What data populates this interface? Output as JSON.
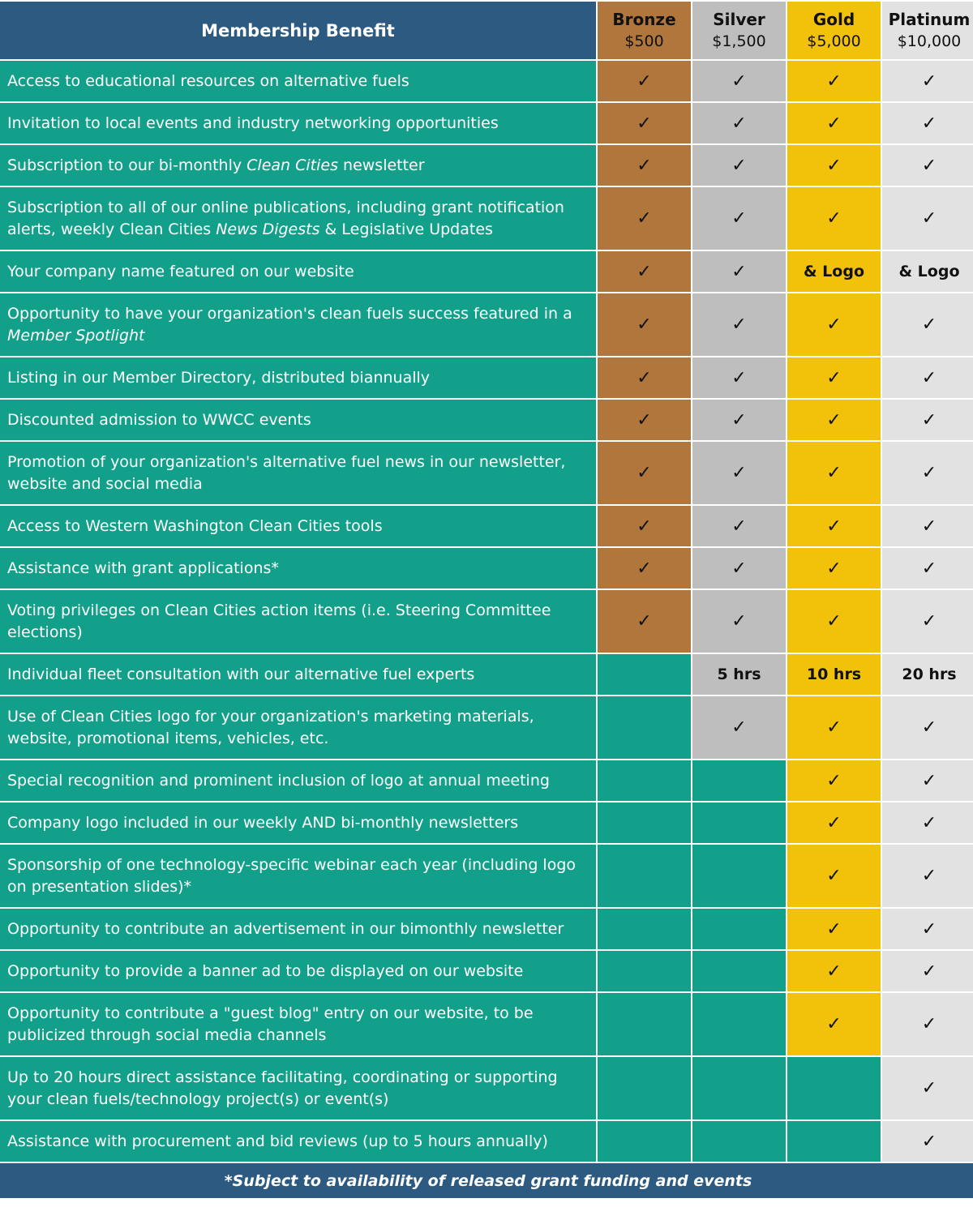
{
  "header": {
    "benefit_label": "Membership Benefit",
    "tiers": [
      {
        "name": "Bronze",
        "price": "$500",
        "color": "#b0763c"
      },
      {
        "name": "Silver",
        "price": "$1,500",
        "color": "#bebebe"
      },
      {
        "name": "Gold",
        "price": "$5,000",
        "color": "#f2c10a"
      },
      {
        "name": "Platinum",
        "price": "$10,000",
        "color": "#e2e2e2"
      }
    ]
  },
  "colors": {
    "header_bg": "#2d5a80",
    "benefit_bg": "#13a08a",
    "check": "#111111"
  },
  "check_symbol": "✓",
  "rows": [
    {
      "parts": [
        {
          "t": "Access to educational resources on alternative fuels"
        }
      ],
      "lines": 1,
      "cells": [
        "check",
        "check",
        "check",
        "check"
      ]
    },
    {
      "parts": [
        {
          "t": "Invitation to local events and industry networking opportunities"
        }
      ],
      "lines": 1,
      "cells": [
        "check",
        "check",
        "check",
        "check"
      ]
    },
    {
      "parts": [
        {
          "t": "Subscription to our bi-monthly "
        },
        {
          "t": "Clean Cities",
          "i": true
        },
        {
          "t": " newsletter"
        }
      ],
      "lines": 1,
      "cells": [
        "check",
        "check",
        "check",
        "check"
      ]
    },
    {
      "parts": [
        {
          "t": "Subscription to all of our online publications, including grant notification alerts, weekly Clean Cities "
        },
        {
          "t": "News Digests",
          "i": true
        },
        {
          "t": " & Legislative Updates"
        }
      ],
      "lines": 2,
      "cells": [
        "check",
        "check",
        "check",
        "check"
      ]
    },
    {
      "parts": [
        {
          "t": "Your company name featured on our website"
        }
      ],
      "lines": 1,
      "cells": [
        "check",
        "check",
        "& Logo",
        "& Logo"
      ]
    },
    {
      "parts": [
        {
          "t": "Opportunity to have your organization's clean fuels success featured in a "
        },
        {
          "t": "Member Spotlight",
          "i": true
        }
      ],
      "lines": 2,
      "cells": [
        "check",
        "check",
        "check",
        "check"
      ]
    },
    {
      "parts": [
        {
          "t": "Listing in our Member Directory, distributed biannually"
        }
      ],
      "lines": 1,
      "cells": [
        "check",
        "check",
        "check",
        "check"
      ]
    },
    {
      "parts": [
        {
          "t": "Discounted admission to WWCC events"
        }
      ],
      "lines": 1,
      "cells": [
        "check",
        "check",
        "check",
        "check"
      ]
    },
    {
      "parts": [
        {
          "t": "Promotion of your organization's alternative fuel news in our newsletter, website and social media"
        }
      ],
      "lines": 2,
      "cells": [
        "check",
        "check",
        "check",
        "check"
      ]
    },
    {
      "parts": [
        {
          "t": "Access to Western Washington Clean Cities tools"
        }
      ],
      "lines": 1,
      "cells": [
        "check",
        "check",
        "check",
        "check"
      ]
    },
    {
      "parts": [
        {
          "t": "Assistance with grant applications*"
        }
      ],
      "lines": 1,
      "cells": [
        "check",
        "check",
        "check",
        "check"
      ]
    },
    {
      "parts": [
        {
          "t": "Voting privileges on Clean Cities action items (i.e. Steering Committee elections)"
        }
      ],
      "lines": 2,
      "cells": [
        "check",
        "check",
        "check",
        "check"
      ]
    },
    {
      "parts": [
        {
          "t": "Individual fleet consultation with our alternative fuel experts"
        }
      ],
      "lines": 1,
      "cells": [
        "",
        "5 hrs",
        "10 hrs",
        "20 hrs"
      ]
    },
    {
      "parts": [
        {
          "t": "Use of Clean Cities logo for your organization's marketing materials, website, promotional items, vehicles, etc."
        }
      ],
      "lines": 2,
      "cells": [
        "",
        "check",
        "check",
        "check"
      ]
    },
    {
      "parts": [
        {
          "t": "Special recognition and prominent inclusion of logo at annual meeting"
        }
      ],
      "lines": 1,
      "cells": [
        "",
        "",
        "check",
        "check"
      ]
    },
    {
      "parts": [
        {
          "t": "Company logo included in our weekly AND bi-monthly newsletters"
        }
      ],
      "lines": 1,
      "cells": [
        "",
        "",
        "check",
        "check"
      ]
    },
    {
      "parts": [
        {
          "t": "Sponsorship of one technology-specific webinar each year (including logo on presentation slides)*"
        }
      ],
      "lines": 2,
      "cells": [
        "",
        "",
        "check",
        "check"
      ]
    },
    {
      "parts": [
        {
          "t": "Opportunity to contribute an advertisement in our bimonthly newsletter"
        }
      ],
      "lines": 1,
      "cells": [
        "",
        "",
        "check",
        "check"
      ]
    },
    {
      "parts": [
        {
          "t": "Opportunity to provide a banner ad to be displayed on our website"
        }
      ],
      "lines": 1,
      "cells": [
        "",
        "",
        "check",
        "check"
      ]
    },
    {
      "parts": [
        {
          "t": "Opportunity to contribute a \"guest blog\" entry on our website, to be publicized through social media channels"
        }
      ],
      "lines": 2,
      "cells": [
        "",
        "",
        "check",
        "check"
      ]
    },
    {
      "parts": [
        {
          "t": "Up to 20 hours direct assistance facilitating, coordinating or supporting your clean fuels/technology project(s) or event(s)"
        }
      ],
      "lines": 2,
      "cells": [
        "",
        "",
        "",
        "check"
      ]
    },
    {
      "parts": [
        {
          "t": "Assistance with procurement and bid reviews (up to 5 hours annually)"
        }
      ],
      "lines": 1,
      "cells": [
        "",
        "",
        "",
        "check"
      ]
    }
  ],
  "footer": {
    "note": "*Subject to availability of released grant funding and events"
  }
}
